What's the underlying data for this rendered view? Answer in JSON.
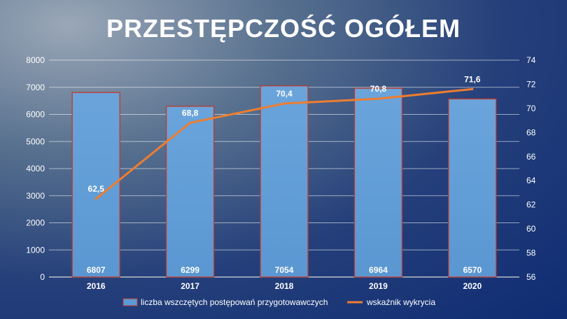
{
  "chart_data": {
    "type": "bar",
    "title": "PRZESTĘPCZOŚĆ OGÓŁEM",
    "categories": [
      "2016",
      "2017",
      "2018",
      "2019",
      "2020"
    ],
    "series": [
      {
        "name": "liczba wszczętych postępowań przygotowawczych",
        "type": "bar",
        "axis": "left",
        "values": [
          6807,
          6299,
          7054,
          6964,
          6570
        ],
        "labels": [
          "6807",
          "6299",
          "7054",
          "6964",
          "6570"
        ],
        "color": "#5b9bd5",
        "border_color": "#c0392b"
      },
      {
        "name": "wskaźnik wykrycia",
        "type": "line",
        "axis": "right",
        "values": [
          62.5,
          68.8,
          70.4,
          70.8,
          71.6
        ],
        "labels": [
          "62,5",
          "68,8",
          "70,4",
          "70,8",
          "71,6"
        ],
        "color": "#ed7d31"
      }
    ],
    "y_left": {
      "min": 0,
      "max": 8000,
      "step": 1000
    },
    "y_right": {
      "min": 56,
      "max": 74,
      "step": 2
    },
    "grid": true,
    "legend_position": "bottom"
  }
}
